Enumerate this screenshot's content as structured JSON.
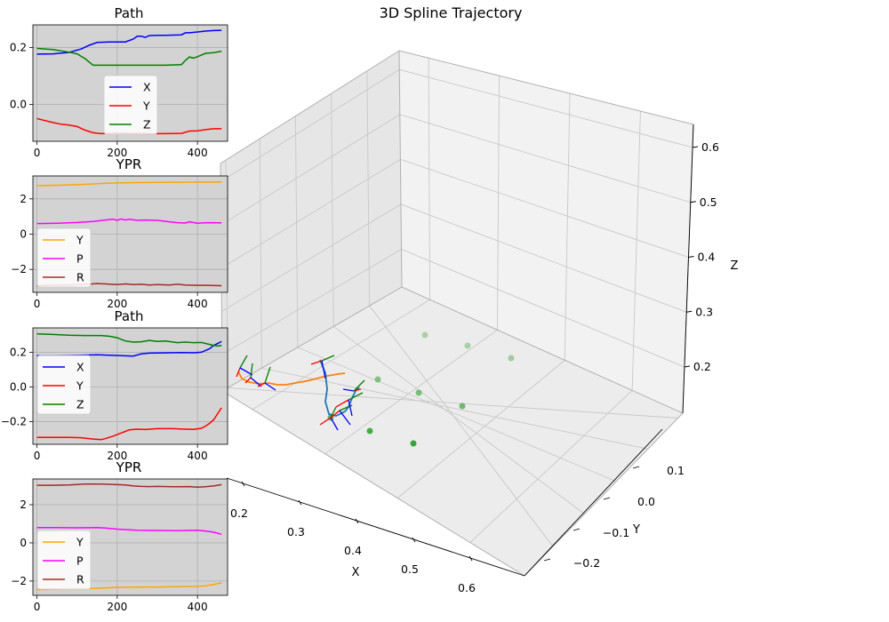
{
  "figure": {
    "main_title": "3D Spline Trajectory"
  },
  "chart_data": [
    {
      "type": "line",
      "title": "Path",
      "xlim": [
        -10,
        475
      ],
      "ylim": [
        -0.13,
        0.28
      ],
      "xticks": [
        0,
        200,
        400
      ],
      "yticks": [
        0.0,
        0.2
      ],
      "ytick_labels": [
        "0.0",
        "0.2"
      ],
      "grid": true,
      "legend_position": "center",
      "series": [
        {
          "name": "X",
          "color": "#0000ff",
          "x": [
            0,
            40,
            80,
            110,
            130,
            150,
            180,
            200,
            220,
            240,
            250,
            260,
            270,
            280,
            300,
            320,
            340,
            360,
            370,
            380,
            400,
            420,
            440,
            460
          ],
          "y": [
            0.177,
            0.178,
            0.183,
            0.195,
            0.208,
            0.218,
            0.22,
            0.22,
            0.22,
            0.23,
            0.24,
            0.24,
            0.236,
            0.242,
            0.243,
            0.243,
            0.244,
            0.245,
            0.252,
            0.252,
            0.255,
            0.258,
            0.26,
            0.261
          ]
        },
        {
          "name": "Y",
          "color": "#ff0000",
          "x": [
            0,
            20,
            40,
            60,
            80,
            100,
            120,
            140,
            160,
            180,
            200,
            240,
            280,
            320,
            360,
            380,
            400,
            420,
            440,
            460
          ],
          "y": [
            -0.05,
            -0.057,
            -0.064,
            -0.07,
            -0.073,
            -0.078,
            -0.091,
            -0.1,
            -0.103,
            -0.102,
            -0.101,
            -0.102,
            -0.103,
            -0.103,
            -0.102,
            -0.094,
            -0.093,
            -0.089,
            -0.086,
            -0.086
          ]
        },
        {
          "name": "Z",
          "color": "#008000",
          "x": [
            0,
            40,
            80,
            100,
            120,
            140,
            160,
            200,
            240,
            280,
            320,
            360,
            370,
            380,
            390,
            400,
            420,
            440,
            460
          ],
          "y": [
            0.197,
            0.193,
            0.184,
            0.178,
            0.161,
            0.138,
            0.138,
            0.138,
            0.138,
            0.138,
            0.138,
            0.14,
            0.155,
            0.167,
            0.163,
            0.168,
            0.18,
            0.182,
            0.187
          ]
        }
      ]
    },
    {
      "type": "line",
      "title": "YPR",
      "xlim": [
        -10,
        475
      ],
      "ylim": [
        -3.3,
        3.3
      ],
      "xticks": [
        0,
        200,
        400
      ],
      "yticks": [
        -2,
        0,
        2
      ],
      "ytick_labels": [
        "−2",
        "0",
        "2"
      ],
      "grid": true,
      "legend_position": "lower left",
      "series": [
        {
          "name": "Y",
          "color": "#ffa500",
          "x": [
            0,
            50,
            100,
            150,
            200,
            250,
            300,
            350,
            400,
            460
          ],
          "y": [
            2.75,
            2.77,
            2.8,
            2.86,
            2.9,
            2.92,
            2.93,
            2.94,
            2.95,
            2.95
          ]
        },
        {
          "name": "P",
          "color": "#ff00ff",
          "x": [
            0,
            50,
            100,
            140,
            170,
            190,
            200,
            210,
            220,
            230,
            250,
            270,
            300,
            330,
            350,
            370,
            380,
            400,
            420,
            460
          ],
          "y": [
            0.6,
            0.62,
            0.66,
            0.72,
            0.8,
            0.85,
            0.78,
            0.86,
            0.8,
            0.84,
            0.78,
            0.8,
            0.78,
            0.7,
            0.65,
            0.63,
            0.7,
            0.62,
            0.65,
            0.64
          ]
        },
        {
          "name": "R",
          "color": "#a52a2a",
          "x": [
            0,
            40,
            80,
            120,
            150,
            170,
            200,
            220,
            240,
            260,
            280,
            300,
            330,
            350,
            370,
            400,
            420,
            460
          ],
          "y": [
            -2.92,
            -2.9,
            -2.88,
            -2.85,
            -2.8,
            -2.82,
            -2.86,
            -2.82,
            -2.86,
            -2.84,
            -2.88,
            -2.86,
            -2.88,
            -2.84,
            -2.88,
            -2.9,
            -2.9,
            -2.92
          ]
        }
      ]
    },
    {
      "type": "line",
      "title": "Path",
      "xlim": [
        -10,
        475
      ],
      "ylim": [
        -0.33,
        0.34
      ],
      "xticks": [
        0,
        200,
        400
      ],
      "yticks": [
        -0.2,
        0.0,
        0.2
      ],
      "ytick_labels": [
        "−0.2",
        "0.0",
        "0.2"
      ],
      "grid": true,
      "legend_position": "center left",
      "series": [
        {
          "name": "X",
          "color": "#0000ff",
          "x": [
            0,
            50,
            100,
            150,
            180,
            210,
            240,
            260,
            280,
            300,
            330,
            360,
            390,
            410,
            420,
            430,
            440,
            460
          ],
          "y": [
            0.18,
            0.18,
            0.182,
            0.185,
            0.183,
            0.18,
            0.178,
            0.19,
            0.195,
            0.196,
            0.197,
            0.198,
            0.197,
            0.2,
            0.21,
            0.22,
            0.238,
            0.262
          ]
        },
        {
          "name": "Y",
          "color": "#ff0000",
          "x": [
            0,
            40,
            80,
            110,
            140,
            160,
            170,
            190,
            210,
            230,
            250,
            270,
            300,
            340,
            370,
            390,
            410,
            420,
            430,
            440,
            460
          ],
          "y": [
            -0.29,
            -0.29,
            -0.29,
            -0.292,
            -0.3,
            -0.303,
            -0.298,
            -0.283,
            -0.265,
            -0.247,
            -0.243,
            -0.245,
            -0.24,
            -0.24,
            -0.243,
            -0.244,
            -0.238,
            -0.225,
            -0.21,
            -0.19,
            -0.12
          ]
        },
        {
          "name": "Z",
          "color": "#008000",
          "x": [
            0,
            40,
            80,
            120,
            160,
            180,
            200,
            220,
            240,
            260,
            280,
            300,
            320,
            350,
            370,
            390,
            410,
            430,
            440,
            450,
            460
          ],
          "y": [
            0.305,
            0.302,
            0.298,
            0.296,
            0.296,
            0.292,
            0.283,
            0.265,
            0.258,
            0.26,
            0.268,
            0.262,
            0.265,
            0.255,
            0.258,
            0.255,
            0.256,
            0.245,
            0.24,
            0.235,
            0.24
          ]
        }
      ]
    },
    {
      "type": "line",
      "title": "YPR",
      "xlim": [
        -10,
        475
      ],
      "ylim": [
        -2.75,
        3.35
      ],
      "xticks": [
        0,
        200,
        400
      ],
      "yticks": [
        -2,
        0,
        2
      ],
      "ytick_labels": [
        "−2",
        "0",
        "2"
      ],
      "grid": true,
      "legend_position": "lower left",
      "series": [
        {
          "name": "Y",
          "color": "#ffa500",
          "x": [
            0,
            50,
            100,
            150,
            200,
            250,
            300,
            350,
            400,
            420,
            440,
            460
          ],
          "y": [
            -2.45,
            -2.42,
            -2.4,
            -2.38,
            -2.33,
            -2.32,
            -2.31,
            -2.3,
            -2.28,
            -2.25,
            -2.18,
            -2.1
          ]
        },
        {
          "name": "P",
          "color": "#ff00ff",
          "x": [
            0,
            50,
            100,
            150,
            170,
            200,
            250,
            300,
            350,
            400,
            420,
            440,
            460
          ],
          "y": [
            0.8,
            0.8,
            0.79,
            0.8,
            0.78,
            0.72,
            0.66,
            0.65,
            0.64,
            0.66,
            0.62,
            0.56,
            0.45
          ]
        },
        {
          "name": "R",
          "color": "#a52a2a",
          "x": [
            0,
            40,
            80,
            120,
            160,
            200,
            220,
            240,
            260,
            280,
            300,
            340,
            380,
            400,
            420,
            440,
            460
          ],
          "y": [
            3.02,
            3.02,
            3.04,
            3.08,
            3.08,
            3.05,
            3.04,
            2.98,
            2.96,
            2.95,
            2.96,
            2.94,
            2.95,
            2.92,
            2.94,
            2.98,
            3.05
          ]
        }
      ]
    },
    {
      "type": "3d-line",
      "title": "3D Spline Trajectory",
      "xlabel": "X",
      "ylabel": "Y",
      "zlabel": "Z",
      "xticks": [
        "0.2",
        "0.3",
        "0.4",
        "0.5",
        "0.6"
      ],
      "yticks": [
        "−0.2",
        "−0.1",
        "0.0",
        "0.1"
      ],
      "zticks": [
        "0.2",
        "0.3",
        "0.4",
        "0.5",
        "0.6"
      ],
      "grid": true,
      "waypoints_color": "#2ca02c",
      "spline_colors": [
        "#ff7f0e",
        "#1f77b4"
      ],
      "frame_axis_colors": [
        "#ff0000",
        "#008000",
        "#0000ff"
      ]
    }
  ]
}
